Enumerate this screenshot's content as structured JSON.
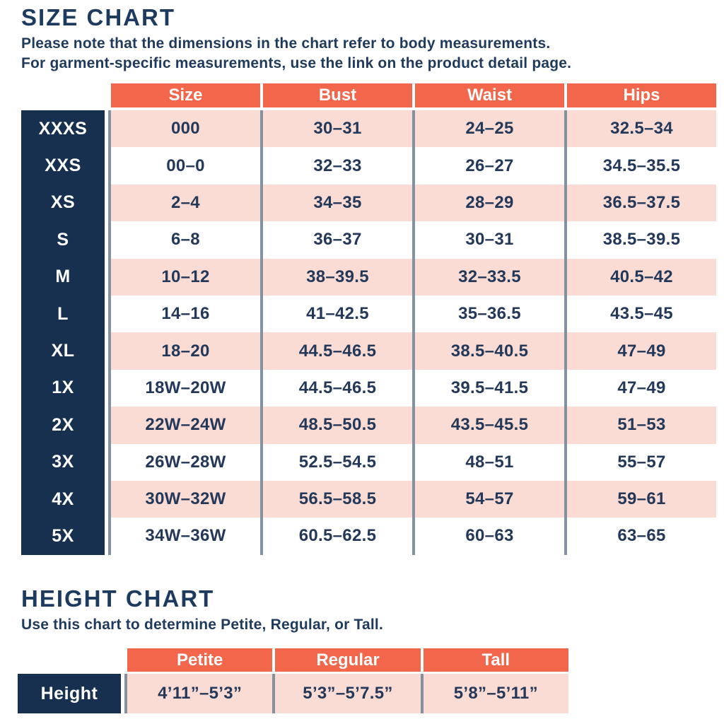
{
  "size_chart": {
    "title": "SIZE CHART",
    "note_line1": "Please note that the dimensions in the chart refer to body measurements.",
    "note_line2": "For garment-specific measurements, use the link on the product detail page.",
    "columns": [
      "Size",
      "Bust",
      "Waist",
      "Hips"
    ],
    "rows": [
      {
        "label": "XXXS",
        "size": "000",
        "bust": "30–31",
        "waist": "24–25",
        "hips": "32.5–34"
      },
      {
        "label": "XXS",
        "size": "00–0",
        "bust": "32–33",
        "waist": "26–27",
        "hips": "34.5–35.5"
      },
      {
        "label": "XS",
        "size": "2–4",
        "bust": "34–35",
        "waist": "28–29",
        "hips": "36.5–37.5"
      },
      {
        "label": "S",
        "size": "6–8",
        "bust": "36–37",
        "waist": "30–31",
        "hips": "38.5–39.5"
      },
      {
        "label": "M",
        "size": "10–12",
        "bust": "38–39.5",
        "waist": "32–33.5",
        "hips": "40.5–42"
      },
      {
        "label": "L",
        "size": "14–16",
        "bust": "41–42.5",
        "waist": "35–36.5",
        "hips": "43.5–45"
      },
      {
        "label": "XL",
        "size": "18–20",
        "bust": "44.5–46.5",
        "waist": "38.5–40.5",
        "hips": "47–49"
      },
      {
        "label": "1X",
        "size": "18W–20W",
        "bust": "44.5–46.5",
        "waist": "39.5–41.5",
        "hips": "47–49"
      },
      {
        "label": "2X",
        "size": "22W–24W",
        "bust": "48.5–50.5",
        "waist": "43.5–45.5",
        "hips": "51–53"
      },
      {
        "label": "3X",
        "size": "26W–28W",
        "bust": "52.5–54.5",
        "waist": "48–51",
        "hips": "55–57"
      },
      {
        "label": "4X",
        "size": "30W–32W",
        "bust": "56.5–58.5",
        "waist": "54–57",
        "hips": "59–61"
      },
      {
        "label": "5X",
        "size": "34W–36W",
        "bust": "60.5–62.5",
        "waist": "60–63",
        "hips": "63–65"
      }
    ]
  },
  "height_chart": {
    "title": "HEIGHT CHART",
    "note": "Use this chart to determine Petite, Regular, or Tall.",
    "columns": [
      "Petite",
      "Regular",
      "Tall"
    ],
    "row_label": "Height",
    "values": [
      "4’11”–5’3”",
      "5’3”–5’7.5”",
      "5’8”–5’11”"
    ]
  },
  "colors": {
    "header_coral": "#f2674b",
    "row_pink": "#fadcd4",
    "label_navy": "#17304f",
    "text_navy": "#22395b",
    "divider_gray": "#8392a1",
    "background": "#ffffff"
  },
  "chart_data": [
    {
      "type": "table",
      "title": "SIZE CHART",
      "columns": [
        "Size",
        "Bust",
        "Waist",
        "Hips"
      ],
      "row_labels": [
        "XXXS",
        "XXS",
        "XS",
        "S",
        "M",
        "L",
        "XL",
        "1X",
        "2X",
        "3X",
        "4X",
        "5X"
      ],
      "rows": [
        [
          "000",
          "30–31",
          "24–25",
          "32.5–34"
        ],
        [
          "00–0",
          "32–33",
          "26–27",
          "34.5–35.5"
        ],
        [
          "2–4",
          "34–35",
          "28–29",
          "36.5–37.5"
        ],
        [
          "6–8",
          "36–37",
          "30–31",
          "38.5–39.5"
        ],
        [
          "10–12",
          "38–39.5",
          "32–33.5",
          "40.5–42"
        ],
        [
          "14–16",
          "41–42.5",
          "35–36.5",
          "43.5–45"
        ],
        [
          "18–20",
          "44.5–46.5",
          "38.5–40.5",
          "47–49"
        ],
        [
          "18W–20W",
          "44.5–46.5",
          "39.5–41.5",
          "47–49"
        ],
        [
          "22W–24W",
          "48.5–50.5",
          "43.5–45.5",
          "51–53"
        ],
        [
          "26W–28W",
          "52.5–54.5",
          "48–51",
          "55–57"
        ],
        [
          "30W–32W",
          "56.5–58.5",
          "54–57",
          "59–61"
        ],
        [
          "34W–36W",
          "60.5–62.5",
          "60–63",
          "63–65"
        ]
      ]
    },
    {
      "type": "table",
      "title": "HEIGHT CHART",
      "columns": [
        "Petite",
        "Regular",
        "Tall"
      ],
      "row_labels": [
        "Height"
      ],
      "rows": [
        [
          "4’11”–5’3”",
          "5’3”–5’7.5”",
          "5’8”–5’11”"
        ]
      ]
    }
  ]
}
